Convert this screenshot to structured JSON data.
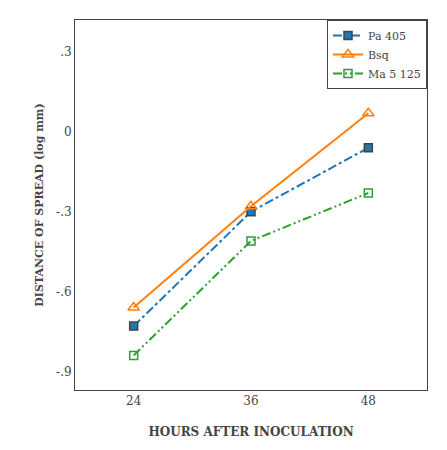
{
  "chart_data": {
    "type": "line",
    "x": [
      24,
      36,
      48
    ],
    "series": [
      {
        "name": "Pa 405",
        "values": [
          -0.73,
          -0.3,
          -0.06
        ],
        "marker": "square",
        "line_style": "dashdot"
      },
      {
        "name": "Bsq",
        "values": [
          -0.66,
          -0.28,
          0.07
        ],
        "marker": "triangle-up-open",
        "line_style": "solid"
      },
      {
        "name": "Ma 5 125",
        "values": [
          -0.84,
          -0.41,
          -0.23
        ],
        "marker": "square-open",
        "line_style": "dashdotdot"
      }
    ],
    "xlabel": "HOURS AFTER INOCULATION",
    "ylabel": "DISTANCE OF SPREAD (log mm)",
    "xlim": [
      18,
      54
    ],
    "ylim": [
      -0.97,
      0.42
    ],
    "xticks": [
      24,
      36,
      48
    ],
    "yticks": [
      {
        "value": -0.9,
        "label": "-.9"
      },
      {
        "value": -0.6,
        "label": "-.6"
      },
      {
        "value": -0.3,
        "label": "-.3"
      },
      0,
      {
        "value": 0.3,
        "label": ".3"
      }
    ],
    "grid": false,
    "legend": "upper right"
  }
}
